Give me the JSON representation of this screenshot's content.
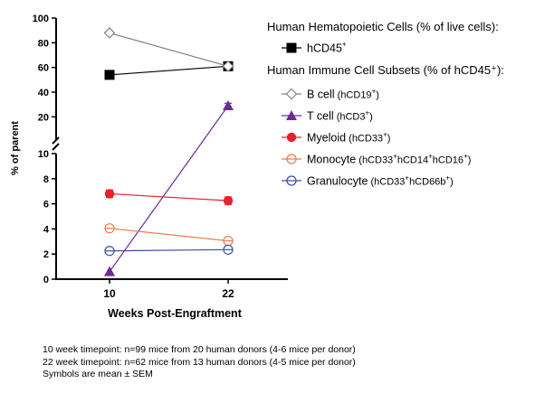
{
  "chart_data": {
    "type": "line",
    "ylabel": "% of parent",
    "xlabel": "Weeks Post-Engraftment",
    "x": [
      "10",
      "22"
    ],
    "y_axis": {
      "broken": true,
      "lower_segment": {
        "range": [
          0,
          10
        ],
        "ticks": [
          "0",
          "2",
          "4",
          "6",
          "8",
          "10"
        ]
      },
      "upper_segment": {
        "range": [
          10,
          100
        ],
        "ticks": [
          "20",
          "40",
          "60",
          "80",
          "100"
        ]
      }
    },
    "legend_groups": [
      {
        "title": "Human Hematopoietic Cells (% of live cells):"
      },
      {
        "title": "Human Immune Cell Subsets (% of hCD45⁺):"
      }
    ],
    "series": [
      {
        "key": "hcd45",
        "group": 0,
        "name": "hCD45",
        "name_sup": "+",
        "name_small": [],
        "color": "#000000",
        "marker": "square-filled",
        "values": [
          54,
          61
        ],
        "sem": [
          0,
          0
        ]
      },
      {
        "key": "bcell",
        "group": 1,
        "name": "B cell",
        "name_small": [
          "hCD19",
          "+",
          ""
        ],
        "color": "#808080",
        "marker": "diamond-open",
        "values": [
          88,
          61
        ],
        "sem": [
          0,
          0
        ]
      },
      {
        "key": "tcell",
        "group": 1,
        "name": "T cell",
        "name_small": [
          "hCD3",
          "+",
          ""
        ],
        "color": "#6a2c91",
        "marker": "triangle-filled",
        "values": [
          0.6,
          29
        ],
        "sem": [
          0,
          2
        ]
      },
      {
        "key": "myeloid",
        "group": 1,
        "name": "Myeloid",
        "name_small": [
          "hCD33",
          "+",
          ""
        ],
        "color": "#e8222e",
        "marker": "circle-filled",
        "values": [
          6.8,
          6.25
        ],
        "sem": [
          0.3,
          0.3
        ]
      },
      {
        "key": "monocyte",
        "group": 1,
        "name": "Monocyte",
        "name_small": [
          "hCD33",
          "+",
          "hCD14",
          "+",
          "hCD16",
          "+",
          ""
        ],
        "color": "#f07a4a",
        "marker": "circle-open-hbar",
        "values": [
          4.05,
          3.05
        ],
        "sem": [
          0.2,
          0.2
        ]
      },
      {
        "key": "granulocyte",
        "group": 1,
        "name": "Granulocyte",
        "name_small": [
          "hCD33",
          "+",
          "hCD66b",
          "+",
          ""
        ],
        "color": "#3b4ea3",
        "marker": "circle-open-hbar",
        "values": [
          2.25,
          2.35
        ],
        "sem": [
          0.1,
          0.1
        ]
      }
    ]
  },
  "footnotes": [
    "10 week timepoint: n=99 mice from 20 human donors (4-6 mice per donor)",
    "22 week timepoint: n=62 mice from 13 human donors (4-5 mice per donor)",
    "Symbols are mean ± SEM"
  ]
}
